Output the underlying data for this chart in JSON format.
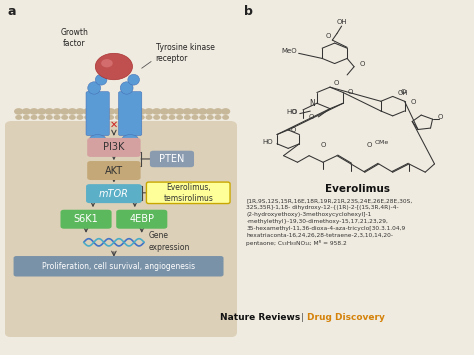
{
  "bg_color": "#f0ebe0",
  "panel_a_bg": "#e8dfc8",
  "panel_b_bg": "#ffffff",
  "everolimus_name": "Everolimus",
  "iupac_line1": "[1R,9S,12S,15R,16E,18R,19R,21R,23S,24E,26E,28E,30S,",
  "iupac_line2": "32S,35R]-1,18- dihydroxy-12-{(1R)-2-[(1S,3R,4R)-4-",
  "iupac_line3": "(2-hydroxyethoxy)-3methoxycyclohexyl]-1",
  "iupac_line4": "-methylethyl}-19,30-dimethoxy-15,17,21,23,29,",
  "iupac_line5": "35-hexamethyl-11,36-dioxa-4-aza-tricyclo[30.3.1.04,9",
  "iupac_line6": "hexatriaconta-16,24,26,28-tetraene-2,3,10,14,20-",
  "iupac_line7": "pentaone; C₅₃H₈₃NO₁₄; Mᴿ = 958.2",
  "journal_black": "Nature Reviews",
  "journal_sep": " | ",
  "journal_orange": "Drug Discovery",
  "colors": {
    "growth_factor_ball": "#c05050",
    "receptor_blue": "#5b9bd5",
    "receptor_blue_dark": "#4472b8",
    "pi3k_pink": "#d4a0a0",
    "pten_gray": "#8a9bb0",
    "akt_tan": "#c4a878",
    "mtor_teal": "#5bafc6",
    "s6k1_green": "#5cb85c",
    "ebp_green": "#5cb85c",
    "gene_dna_blue": "#4472c4",
    "gene_dna_teal": "#4bacc6",
    "proliferation_box": "#7a92a8",
    "drug_box_fill": "#ffff99",
    "drug_box_border": "#c8a800",
    "arrow_color": "#444444",
    "inhibit_bar": "#444444",
    "membrane_dot": "#c8b89a",
    "panel_a_bg": "#e8dfc8",
    "inner_bg": "#ddd0b8",
    "orange_journal": "#d4820a",
    "bond_color": "#333333"
  }
}
